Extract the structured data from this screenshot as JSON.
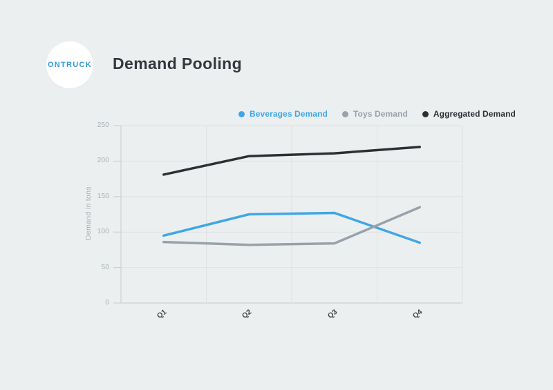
{
  "page": {
    "background": "#ECEFF0"
  },
  "header": {
    "logo_text": "ONTRUCK",
    "logo_color": "#2D9CDB",
    "title": "Demand Pooling"
  },
  "chart_data": {
    "type": "line",
    "title": "Demand Pooling",
    "categories": [
      "Q1",
      "Q2",
      "Q3",
      "Q4"
    ],
    "series": [
      {
        "name": "Beverages Demand",
        "color": "#3FA7E5",
        "values": [
          95,
          125,
          127,
          85
        ]
      },
      {
        "name": "Toys Demand",
        "color": "#97A2A9",
        "values": [
          86,
          82,
          84,
          135
        ]
      },
      {
        "name": "Aggregated Demand",
        "color": "#2B3034",
        "values": [
          181,
          207,
          211,
          220
        ]
      }
    ],
    "xlabel": "",
    "ylabel": "Demand in tons",
    "ylim": [
      0,
      250
    ],
    "ytick_step": 50,
    "grid": true,
    "legend_position": "top",
    "colors": {
      "grid_line": "#DEE2E4",
      "axis_line": "#C6CBCE",
      "tick_label": "#A6AEB3",
      "category_label": "#42484D"
    }
  }
}
